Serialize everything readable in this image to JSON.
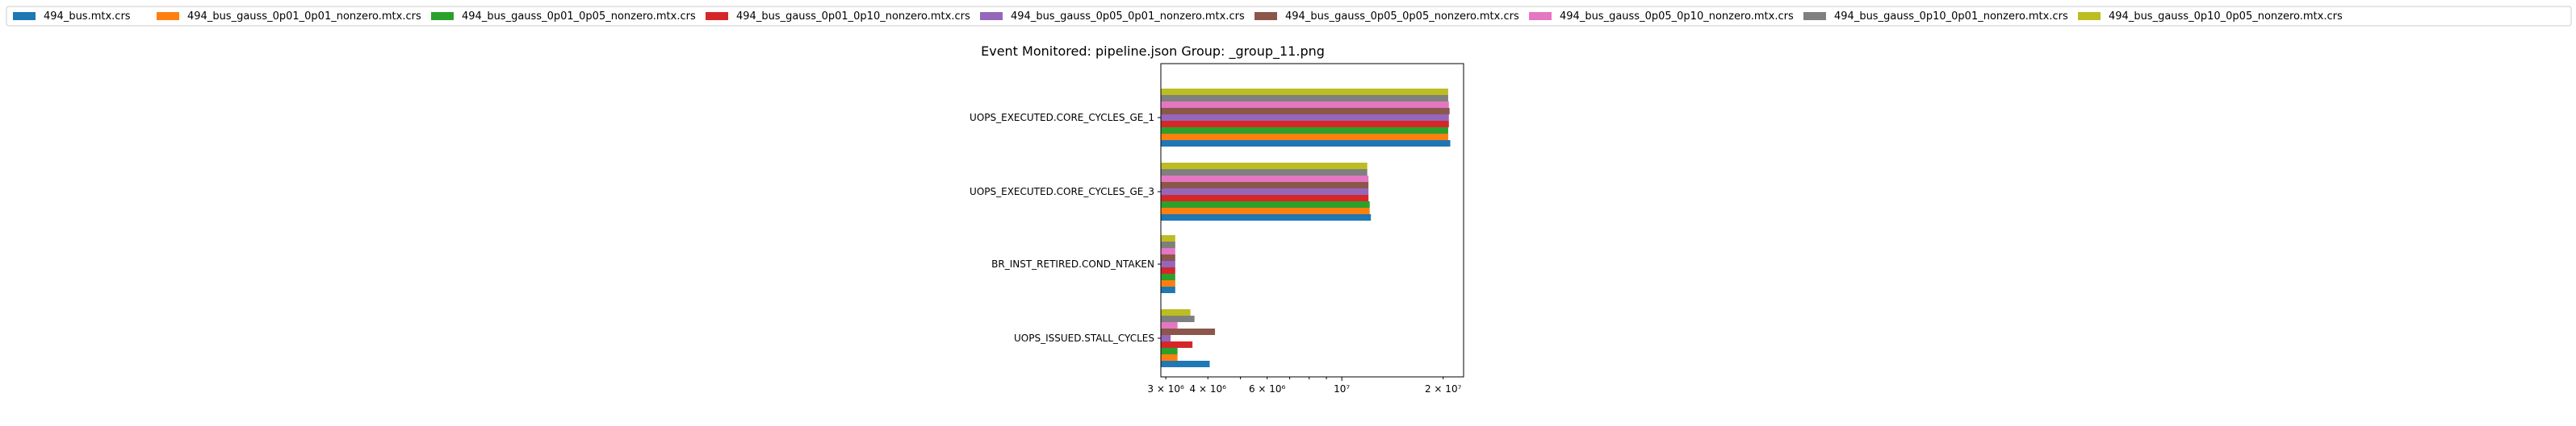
{
  "chart_data": {
    "type": "bar",
    "orientation": "horizontal",
    "title": "Event Monitored: pipeline.json Group: _group_11.png",
    "xlabel": "",
    "ylabel": "",
    "xscale": "log",
    "xlim": [
      2900000,
      23000000
    ],
    "xticks": [
      {
        "value": 3000000,
        "label": "3 × 10⁶"
      },
      {
        "value": 4000000,
        "label": "4 × 10⁶"
      },
      {
        "value": 6000000,
        "label": "6 × 10⁶"
      },
      {
        "value": 10000000,
        "label": "10⁷"
      },
      {
        "value": 20000000,
        "label": "2 × 10⁷"
      }
    ],
    "categories": [
      "UOPS_EXECUTED.CORE_CYCLES_GE_1",
      "UOPS_EXECUTED.CORE_CYCLES_GE_3",
      "BR_INST_RETIRED.COND_NTAKEN",
      "UOPS_ISSUED.STALL_CYCLES"
    ],
    "legend_position": "top",
    "grid": false,
    "series": [
      {
        "name": "494_bus.mtx.crs",
        "color": "#1f77b4",
        "values": [
          21000000,
          12200000,
          3200000,
          4050000
        ]
      },
      {
        "name": "494_bus_gauss_0p01_0p01_nonzero.mtx.crs",
        "color": "#ff7f0e",
        "values": [
          20700000,
          12100000,
          3200000,
          3250000
        ]
      },
      {
        "name": "494_bus_gauss_0p01_0p05_nonzero.mtx.crs",
        "color": "#2ca02c",
        "values": [
          20700000,
          12100000,
          3200000,
          3250000
        ]
      },
      {
        "name": "494_bus_gauss_0p01_0p10_nonzero.mtx.crs",
        "color": "#d62728",
        "values": [
          20800000,
          12000000,
          3200000,
          3600000
        ]
      },
      {
        "name": "494_bus_gauss_0p05_0p01_nonzero.mtx.crs",
        "color": "#9467bd",
        "values": [
          20800000,
          12000000,
          3200000,
          3100000
        ]
      },
      {
        "name": "494_bus_gauss_0p05_0p05_nonzero.mtx.crs",
        "color": "#8c564b",
        "values": [
          20900000,
          12000000,
          3200000,
          4200000
        ]
      },
      {
        "name": "494_bus_gauss_0p05_0p10_nonzero.mtx.crs",
        "color": "#e377c2",
        "values": [
          20800000,
          12000000,
          3200000,
          3250000
        ]
      },
      {
        "name": "494_bus_gauss_0p10_0p01_nonzero.mtx.crs",
        "color": "#7f7f7f",
        "values": [
          20700000,
          11900000,
          3200000,
          3650000
        ]
      },
      {
        "name": "494_bus_gauss_0p10_0p05_nonzero.mtx.crs",
        "color": "#bcbd22",
        "values": [
          20700000,
          11900000,
          3200000,
          3550000
        ]
      }
    ]
  }
}
